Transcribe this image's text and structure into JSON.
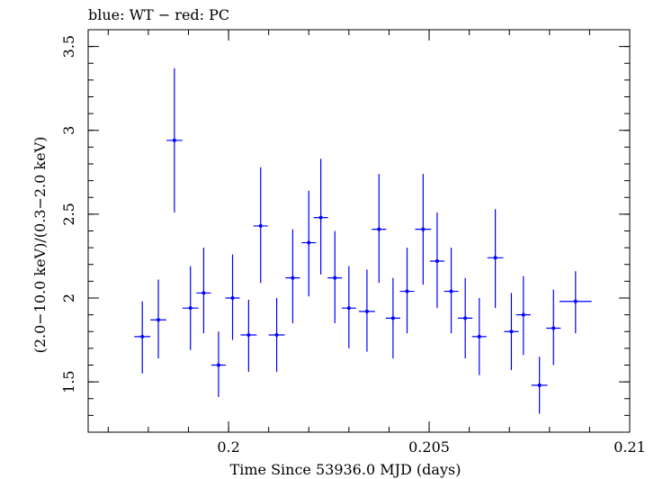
{
  "chart_data": {
    "type": "scatter",
    "title": "blue: WT − red: PC",
    "xlabel": "Time Since 53936.0 MJD (days)",
    "ylabel": "(2.0−10.0 keV)/(0.3−2.0 keV)",
    "xlim": [
      0.1965,
      0.21
    ],
    "ylim": [
      1.2,
      3.6
    ],
    "x_ticks": [
      0.2,
      0.205,
      0.21
    ],
    "x_tick_labels": [
      "0.2",
      "0.205",
      "0.21"
    ],
    "y_ticks": [
      1.5,
      2,
      2.5,
      3,
      3.5
    ],
    "y_tick_labels": [
      "1.5",
      "2",
      "2.5",
      "3",
      "3.5"
    ],
    "grid": false,
    "series": [
      {
        "color": "#0000ff",
        "points": [
          {
            "x": 0.19785,
            "xerr": 0.0002,
            "y": 1.77,
            "ylo": 1.55,
            "yhi": 1.98
          },
          {
            "x": 0.19825,
            "xerr": 0.0002,
            "y": 1.87,
            "ylo": 1.64,
            "yhi": 2.11
          },
          {
            "x": 0.19865,
            "xerr": 0.0002,
            "y": 2.94,
            "ylo": 2.51,
            "yhi": 3.37
          },
          {
            "x": 0.19905,
            "xerr": 0.0002,
            "y": 1.94,
            "ylo": 1.69,
            "yhi": 2.19
          },
          {
            "x": 0.19938,
            "xerr": 0.00018,
            "y": 2.03,
            "ylo": 1.79,
            "yhi": 2.3
          },
          {
            "x": 0.19975,
            "xerr": 0.00018,
            "y": 1.6,
            "ylo": 1.41,
            "yhi": 1.8
          },
          {
            "x": 0.2001,
            "xerr": 0.00018,
            "y": 2.0,
            "ylo": 1.75,
            "yhi": 2.26
          },
          {
            "x": 0.2005,
            "xerr": 0.0002,
            "y": 1.78,
            "ylo": 1.56,
            "yhi": 1.99
          },
          {
            "x": 0.2012,
            "xerr": 0.0002,
            "y": 1.78,
            "ylo": 1.56,
            "yhi": 2.0
          },
          {
            "x": 0.2008,
            "xerr": 0.00018,
            "y": 2.43,
            "ylo": 2.09,
            "yhi": 2.78
          },
          {
            "x": 0.2016,
            "xerr": 0.00018,
            "y": 2.12,
            "ylo": 1.85,
            "yhi": 2.41
          },
          {
            "x": 0.202,
            "xerr": 0.00018,
            "y": 2.33,
            "ylo": 2.01,
            "yhi": 2.64
          },
          {
            "x": 0.2023,
            "xerr": 0.00018,
            "y": 2.48,
            "ylo": 2.14,
            "yhi": 2.83
          },
          {
            "x": 0.20265,
            "xerr": 0.00018,
            "y": 2.12,
            "ylo": 1.85,
            "yhi": 2.4
          },
          {
            "x": 0.203,
            "xerr": 0.00018,
            "y": 1.94,
            "ylo": 1.7,
            "yhi": 2.19
          },
          {
            "x": 0.20345,
            "xerr": 0.0002,
            "y": 1.92,
            "ylo": 1.68,
            "yhi": 2.17
          },
          {
            "x": 0.20375,
            "xerr": 0.00018,
            "y": 2.41,
            "ylo": 2.09,
            "yhi": 2.74
          },
          {
            "x": 0.2041,
            "xerr": 0.00018,
            "y": 1.88,
            "ylo": 1.64,
            "yhi": 2.12
          },
          {
            "x": 0.20445,
            "xerr": 0.00018,
            "y": 2.04,
            "ylo": 1.79,
            "yhi": 2.3
          },
          {
            "x": 0.20485,
            "xerr": 0.0002,
            "y": 2.41,
            "ylo": 2.08,
            "yhi": 2.74
          },
          {
            "x": 0.2052,
            "xerr": 0.00018,
            "y": 2.22,
            "ylo": 1.94,
            "yhi": 2.51
          },
          {
            "x": 0.20555,
            "xerr": 0.00018,
            "y": 2.04,
            "ylo": 1.79,
            "yhi": 2.3
          },
          {
            "x": 0.2059,
            "xerr": 0.00018,
            "y": 1.88,
            "ylo": 1.64,
            "yhi": 2.12
          },
          {
            "x": 0.20625,
            "xerr": 0.00018,
            "y": 1.77,
            "ylo": 1.54,
            "yhi": 2.0
          },
          {
            "x": 0.20665,
            "xerr": 0.0002,
            "y": 2.24,
            "ylo": 1.94,
            "yhi": 2.53
          },
          {
            "x": 0.20705,
            "xerr": 0.00018,
            "y": 1.8,
            "ylo": 1.57,
            "yhi": 2.03
          },
          {
            "x": 0.20735,
            "xerr": 0.00018,
            "y": 1.9,
            "ylo": 1.66,
            "yhi": 2.13
          },
          {
            "x": 0.20775,
            "xerr": 0.0002,
            "y": 1.48,
            "ylo": 1.31,
            "yhi": 1.65
          },
          {
            "x": 0.2081,
            "xerr": 0.00018,
            "y": 1.82,
            "ylo": 1.6,
            "yhi": 2.05
          },
          {
            "x": 0.20865,
            "xerr": 0.0004,
            "y": 1.98,
            "ylo": 1.79,
            "yhi": 2.16
          }
        ]
      }
    ]
  }
}
